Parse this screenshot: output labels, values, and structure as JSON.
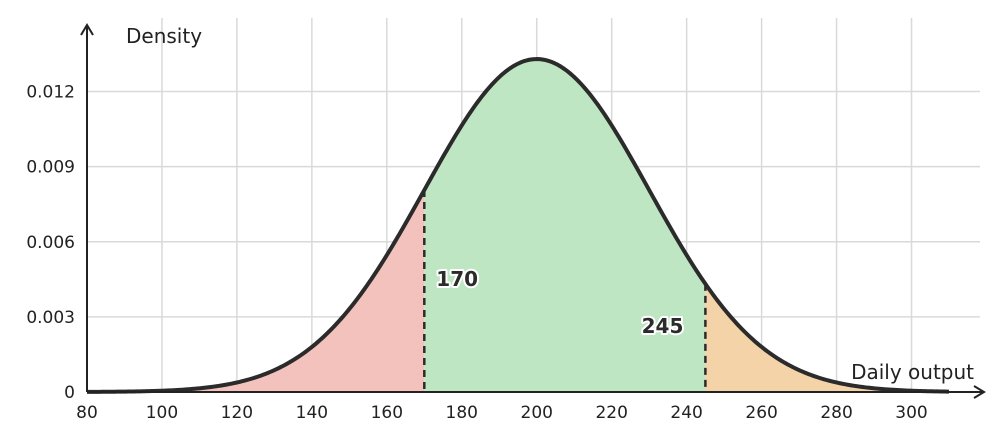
{
  "chart_data": {
    "type": "area",
    "title": "",
    "xlabel": "Daily output",
    "ylabel": "Density",
    "xlim": [
      80,
      310
    ],
    "ylim": [
      0,
      0.0133
    ],
    "x_ticks": [
      80,
      100,
      120,
      140,
      160,
      180,
      200,
      220,
      240,
      260,
      280,
      300
    ],
    "y_ticks": [
      0,
      0.003,
      0.006,
      0.009,
      0.012
    ],
    "y_tick_labels": [
      "0",
      "0.003",
      "0.006",
      "0.009",
      "0.012"
    ],
    "grid": true,
    "distribution": {
      "kind": "normal",
      "mean": 200,
      "sd": 30
    },
    "regions": [
      {
        "from": 80,
        "to": 170,
        "color": "#f4c2bd"
      },
      {
        "from": 170,
        "to": 245,
        "color": "#bfe6c2"
      },
      {
        "from": 245,
        "to": 310,
        "color": "#f5d3a8"
      }
    ],
    "cutoffs": [
      {
        "x": 170,
        "label": "170"
      },
      {
        "x": 245,
        "label": "245"
      }
    ]
  }
}
